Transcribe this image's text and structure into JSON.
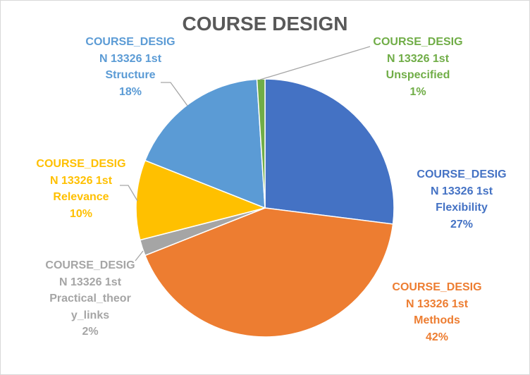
{
  "chart_data": {
    "type": "pie",
    "title": "COURSE DESIGN",
    "slices": [
      {
        "label": "COURSE_DESIGN 13326 1st Flexibility",
        "value": 27,
        "color": "#4472C4",
        "lines": [
          "COURSE_DESIG",
          "N 13326 1st",
          "Flexibility",
          "27%"
        ]
      },
      {
        "label": "COURSE_DESIGN 13326 1st Methods",
        "value": 42,
        "color": "#ED7D31",
        "lines": [
          "COURSE_DESIG",
          "N 13326 1st",
          "Methods",
          "42%"
        ]
      },
      {
        "label": "COURSE_DESIGN 13326 1st Practical_theory_links",
        "value": 2,
        "color": "#A5A5A5",
        "lines": [
          "COURSE_DESIG",
          "N 13326 1st",
          "Practical_theor",
          "y_links",
          "2%"
        ]
      },
      {
        "label": "COURSE_DESIGN 13326 1st Relevance",
        "value": 10,
        "color": "#FFC000",
        "lines": [
          "COURSE_DESIG",
          "N 13326 1st",
          "Relevance",
          "10%"
        ]
      },
      {
        "label": "COURSE_DESIGN 13326 1st Structure",
        "value": 18,
        "color": "#5B9BD5",
        "lines": [
          "COURSE_DESIG",
          "N 13326 1st",
          "Structure",
          "18%"
        ]
      },
      {
        "label": "COURSE_DESIGN 13326 1st Unspecified",
        "value": 1,
        "color": "#70AD47",
        "lines": [
          "COURSE_DESIG",
          "N 13326 1st",
          "Unspecified",
          "1%"
        ]
      }
    ]
  }
}
